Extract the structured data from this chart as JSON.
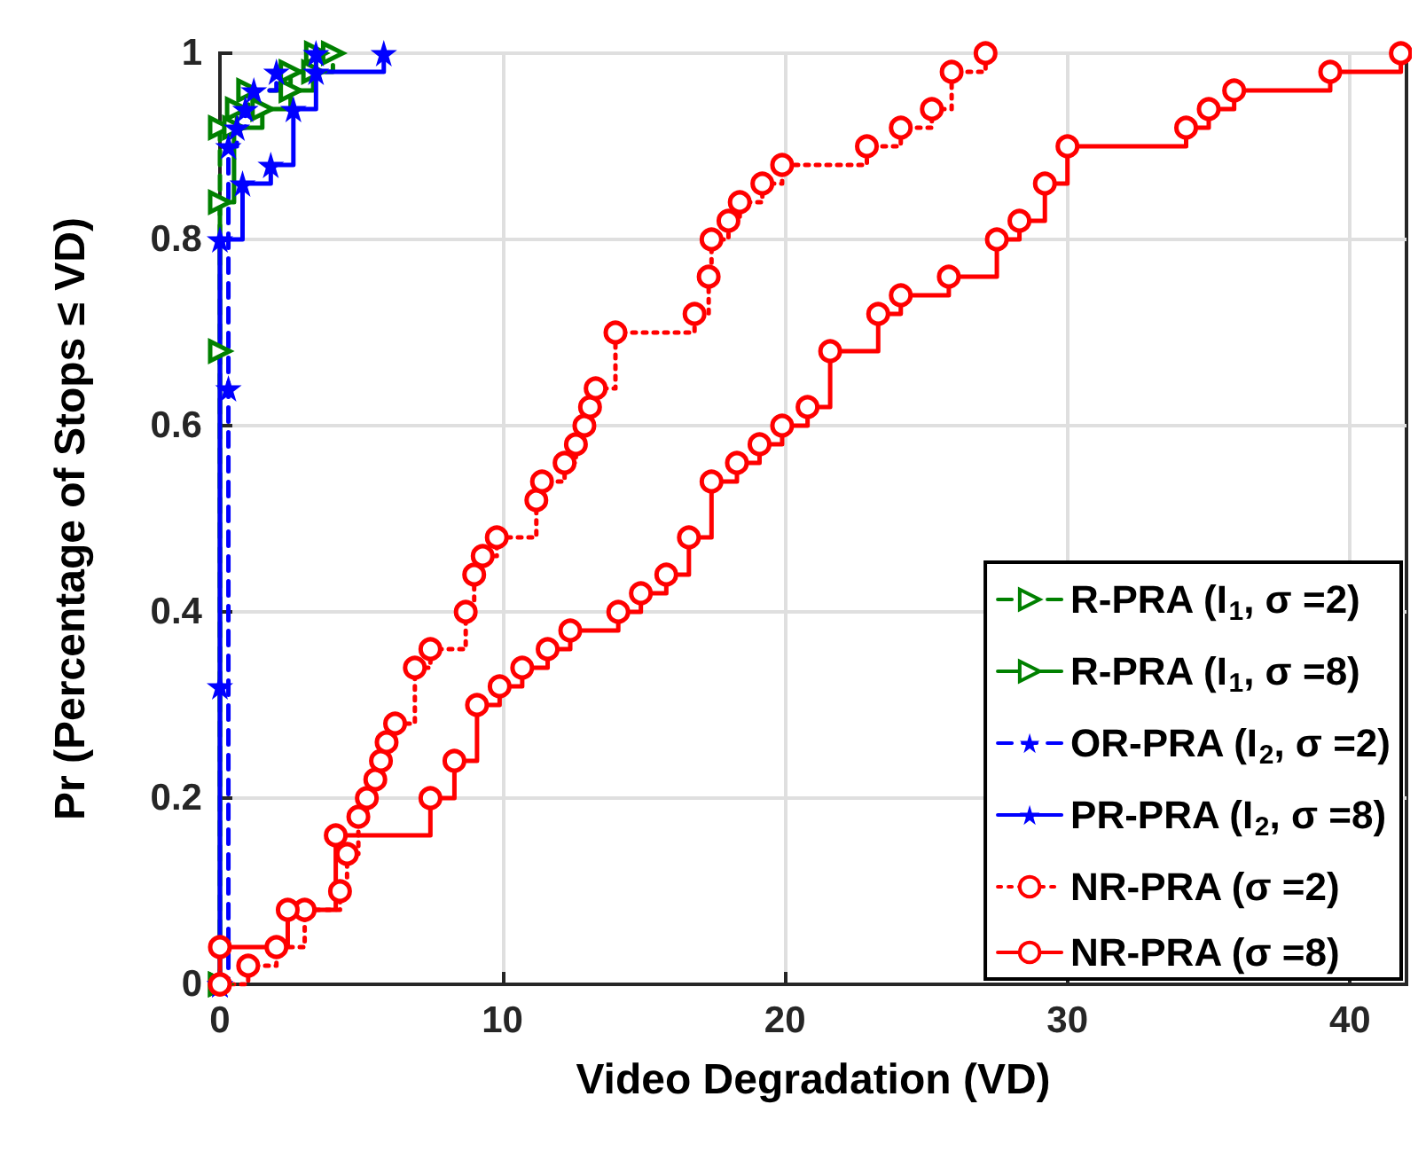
{
  "chart_data": {
    "type": "step",
    "xlabel": "Video Degradation (VD)",
    "ylabel": "Pr (Percentage of Stops ≤ VD)",
    "xlim": [
      0,
      42
    ],
    "ylim": [
      0,
      1
    ],
    "xticks": [
      0,
      10,
      20,
      30,
      40
    ],
    "yticks": [
      0,
      0.2,
      0.4,
      0.6,
      0.8,
      1
    ],
    "grid": true,
    "legend": "bottom right",
    "series": [
      {
        "name": "R-PRA (I$_{1}$, σ =2)",
        "color": "#008000",
        "line_style": "dashed",
        "marker": "triangle",
        "x": [
          0,
          0,
          0,
          0.6,
          1.0,
          2.5,
          4.0
        ],
        "values": [
          0,
          0.68,
          0.92,
          0.94,
          0.96,
          0.98,
          1.0
        ]
      },
      {
        "name": "R-PRA (I$_{1}$, σ =8)",
        "color": "#008000",
        "line_style": "solid",
        "marker": "triangle",
        "x": [
          0,
          0,
          0.5,
          1.5,
          2.5,
          3.3,
          3.4
        ],
        "values": [
          0,
          0.84,
          0.92,
          0.94,
          0.96,
          0.98,
          1.0
        ]
      },
      {
        "name": "OR-PRA (I$_{2}$, σ =2)",
        "color": "#0000ff",
        "line_style": "dashed",
        "marker": "star",
        "x": [
          0,
          0.3,
          0.3,
          0.6,
          0.9,
          1.2,
          2.0,
          3.4
        ],
        "values": [
          0,
          0.64,
          0.9,
          0.92,
          0.94,
          0.96,
          0.98,
          1.0
        ]
      },
      {
        "name": "PR-PRA (I$_{2}$, σ =8)",
        "color": "#0000ff",
        "line_style": "solid",
        "marker": "star",
        "x": [
          0,
          0,
          0,
          0.8,
          1.8,
          2.6,
          3.4,
          5.8
        ],
        "values": [
          0,
          0.32,
          0.8,
          0.86,
          0.88,
          0.94,
          0.98,
          1.0
        ]
      },
      {
        "name": "NR-PRA (σ =2)",
        "color": "#ff0000",
        "line_style": "dotted",
        "marker": "circle",
        "x": [
          0,
          1.0,
          2.0,
          3.0,
          4.25,
          4.5,
          4.9,
          5.2,
          5.5,
          5.7,
          5.9,
          6.2,
          6.9,
          7.45,
          8.7,
          9.0,
          9.3,
          9.8,
          11.2,
          11.4,
          12.2,
          12.6,
          12.9,
          13.1,
          13.3,
          14.0,
          16.8,
          17.3,
          17.4,
          18.0,
          18.4,
          19.2,
          19.9,
          22.9,
          24.1,
          25.2,
          25.9,
          27.1
        ],
        "values": [
          0,
          0.02,
          0.04,
          0.08,
          0.1,
          0.14,
          0.18,
          0.2,
          0.22,
          0.24,
          0.26,
          0.28,
          0.34,
          0.36,
          0.4,
          0.44,
          0.46,
          0.48,
          0.52,
          0.54,
          0.56,
          0.58,
          0.6,
          0.62,
          0.64,
          0.7,
          0.72,
          0.76,
          0.8,
          0.82,
          0.84,
          0.86,
          0.88,
          0.9,
          0.92,
          0.94,
          0.98,
          1.0
        ]
      },
      {
        "name": "NR-PRA (σ =8)",
        "color": "#ff0000",
        "line_style": "solid",
        "marker": "circle",
        "x": [
          0,
          0,
          2.4,
          4.1,
          7.45,
          8.3,
          9.1,
          9.9,
          10.7,
          11.6,
          12.4,
          14.1,
          14.9,
          15.8,
          16.6,
          17.4,
          18.3,
          19.1,
          19.9,
          20.8,
          21.6,
          23.3,
          24.1,
          25.8,
          27.5,
          28.3,
          29.2,
          30.0,
          34.2,
          35.0,
          35.9,
          39.3,
          41.8
        ],
        "values": [
          0,
          0.04,
          0.08,
          0.16,
          0.2,
          0.24,
          0.3,
          0.32,
          0.34,
          0.36,
          0.38,
          0.4,
          0.42,
          0.44,
          0.48,
          0.54,
          0.56,
          0.58,
          0.6,
          0.62,
          0.68,
          0.72,
          0.74,
          0.76,
          0.8,
          0.82,
          0.86,
          0.9,
          0.92,
          0.94,
          0.96,
          0.98,
          1.0
        ]
      }
    ]
  }
}
